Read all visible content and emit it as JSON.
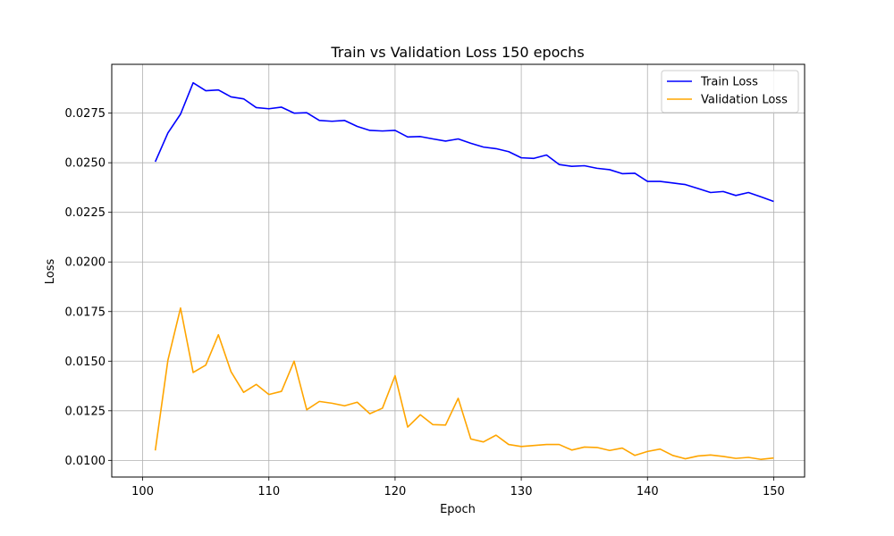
{
  "chart_data": {
    "type": "line",
    "title": "Train vs Validation Loss 150 epochs",
    "xlabel": "Epoch",
    "ylabel": "Loss",
    "xlim": [
      97.55,
      152.45
    ],
    "ylim": [
      0.00916,
      0.02996
    ],
    "xticks": [
      100,
      110,
      120,
      130,
      140,
      150
    ],
    "xtick_labels": [
      "100",
      "110",
      "120",
      "130",
      "140",
      "150"
    ],
    "yticks": [
      0.01,
      0.0125,
      0.015,
      0.0175,
      0.02,
      0.0225,
      0.025,
      0.0275
    ],
    "ytick_labels": [
      "0.0100",
      "0.0125",
      "0.0150",
      "0.0175",
      "0.0200",
      "0.0225",
      "0.0250",
      "0.0275"
    ],
    "grid": true,
    "legend_position": "top-right",
    "x": [
      101,
      102,
      103,
      104,
      105,
      106,
      107,
      108,
      109,
      110,
      111,
      112,
      113,
      114,
      115,
      116,
      117,
      118,
      119,
      120,
      121,
      122,
      123,
      124,
      125,
      126,
      127,
      128,
      129,
      130,
      131,
      132,
      133,
      134,
      135,
      136,
      137,
      138,
      139,
      140,
      141,
      142,
      143,
      144,
      145,
      146,
      147,
      148,
      149,
      150
    ],
    "series": [
      {
        "name": "Train Loss",
        "color": "#0000ff",
        "values": [
          0.02505,
          0.0265,
          0.02745,
          0.02903,
          0.02863,
          0.02867,
          0.02832,
          0.02822,
          0.02778,
          0.02772,
          0.0278,
          0.0275,
          0.02752,
          0.02713,
          0.02709,
          0.02713,
          0.02683,
          0.02663,
          0.0266,
          0.02663,
          0.0263,
          0.02632,
          0.0262,
          0.02609,
          0.0262,
          0.02598,
          0.02579,
          0.02571,
          0.02556,
          0.02525,
          0.02522,
          0.02539,
          0.02491,
          0.02482,
          0.02485,
          0.02472,
          0.02465,
          0.02445,
          0.02447,
          0.02406,
          0.02406,
          0.02398,
          0.0239,
          0.0237,
          0.0235,
          0.02355,
          0.02335,
          0.0235,
          0.02328,
          0.02305
        ]
      },
      {
        "name": "Validation Loss",
        "color": "#ffa500",
        "values": [
          0.0105,
          0.01505,
          0.01768,
          0.01443,
          0.0148,
          0.01633,
          0.01447,
          0.01343,
          0.01383,
          0.01332,
          0.01348,
          0.015,
          0.01255,
          0.01297,
          0.01288,
          0.01275,
          0.01293,
          0.01235,
          0.01263,
          0.01427,
          0.01168,
          0.0123,
          0.0118,
          0.01178,
          0.01313,
          0.01108,
          0.01093,
          0.01127,
          0.0108,
          0.0107,
          0.01075,
          0.0108,
          0.0108,
          0.01052,
          0.01067,
          0.01065,
          0.0105,
          0.01062,
          0.01025,
          0.01045,
          0.01057,
          0.01025,
          0.01008,
          0.01022,
          0.01027,
          0.0102,
          0.0101,
          0.01015,
          0.01005,
          0.01012
        ]
      }
    ]
  },
  "colors": {
    "grid": "#b0b0b0",
    "axes": "#000000",
    "legend_border": "#cccccc"
  }
}
